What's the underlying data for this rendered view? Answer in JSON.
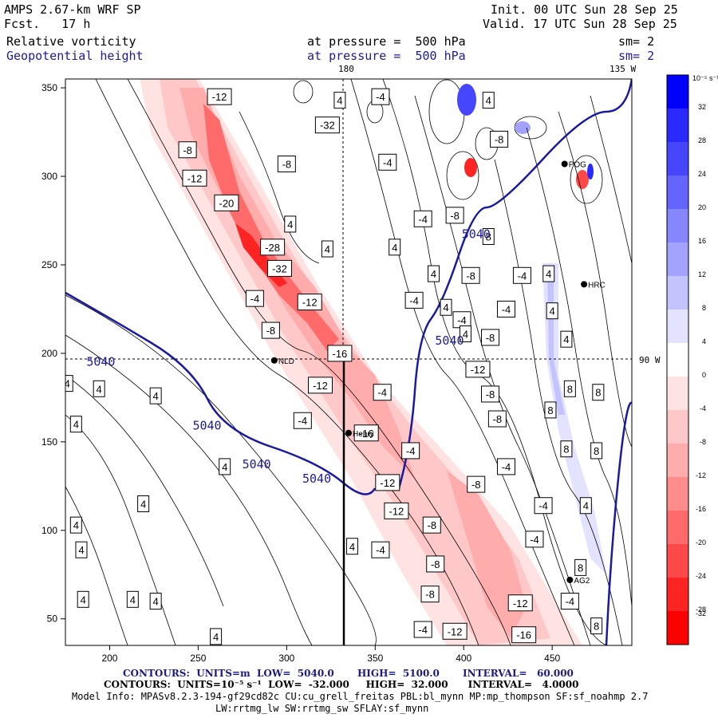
{
  "header": {
    "model": "AMPS 2.67-km WRF SP",
    "fcst": "Fcst.   17 h",
    "init": "Init. 00 UTC Sun 28 Sep 25",
    "valid": "Valid. 17 UTC Sun 28 Sep 25",
    "field1": "Relative vorticity",
    "field2": "Geopotential height",
    "level1": "at pressure =  500 hPa",
    "level2": "at pressure =  500 hPa",
    "sm1": "sm= 2",
    "sm2": "sm= 2",
    "lon180": "180",
    "lon135": "135 W",
    "lat90": "90 W"
  },
  "footer": {
    "line1": "CONTOURS:  UNITS=m  LOW=  5040.0       HIGH=  5100.0       INTERVAL=   60.000",
    "line2": "CONTOURS:  UNITS=10⁻⁵ s⁻¹  LOW=  -32.000     HIGH=  32.000      INTERVAL=   4.0000",
    "line3": "Model Info: MPASv8.2.3-194-gf29cd82c CU:cu_grell_freitas PBL:bl_mynn MP:mp_thompson SF:sf_noahmp 2.7",
    "line4": "LW:rrtmg_lw SW:rrtmg_sw SFLAY:sf_mynn"
  },
  "colorbar": {
    "unit": "10⁻⁵ s⁻¹",
    "labels": [
      "32",
      "28",
      "24",
      "20",
      "16",
      "12",
      "8",
      "4",
      "0",
      "-4",
      "-8",
      "-12",
      "-16",
      "-20",
      "-24",
      "-28",
      "-32"
    ],
    "colors": [
      "#0000ff",
      "#2a2aff",
      "#4646ff",
      "#6464ff",
      "#8686ff",
      "#a3a3ff",
      "#c3c3ff",
      "#e3e3ff",
      "#ffffff",
      "#ffe3e3",
      "#ffc8c8",
      "#ffacac",
      "#ff8c8c",
      "#ff6b6b",
      "#ff4848",
      "#ff2424",
      "#ff0000"
    ]
  },
  "chart_data": {
    "type": "contour-map",
    "xlim": [
      175,
      495
    ],
    "ylim": [
      35,
      355
    ],
    "xticks": [
      200,
      250,
      300,
      350,
      400,
      450
    ],
    "yticks": [
      50,
      100,
      150,
      200,
      250,
      300,
      350
    ],
    "height_contours_m": [
      "5040"
    ],
    "height_labels": [
      {
        "text": "5040",
        "x": 195,
        "y": 193
      },
      {
        "text": "5040",
        "x": 255,
        "y": 157
      },
      {
        "text": "5040",
        "x": 283,
        "y": 135
      },
      {
        "text": "5040",
        "x": 317,
        "y": 127
      },
      {
        "text": "5040",
        "x": 392,
        "y": 205
      },
      {
        "text": "5040",
        "x": 407,
        "y": 265
      }
    ],
    "vorticity_labels": [
      {
        "text": "-12",
        "x": 262,
        "y": 345
      },
      {
        "text": "4",
        "x": 330,
        "y": 343
      },
      {
        "text": "-4",
        "x": 353,
        "y": 345
      },
      {
        "text": "-32",
        "x": 323,
        "y": 329
      },
      {
        "text": "4",
        "x": 414,
        "y": 343
      },
      {
        "text": "-8",
        "x": 244,
        "y": 315
      },
      {
        "text": "-8",
        "x": 300,
        "y": 307
      },
      {
        "text": "-4",
        "x": 357,
        "y": 308
      },
      {
        "text": "-8",
        "x": 420,
        "y": 321
      },
      {
        "text": "-12",
        "x": 248,
        "y": 299
      },
      {
        "text": "-20",
        "x": 266,
        "y": 285
      },
      {
        "text": "-4",
        "x": 377,
        "y": 276
      },
      {
        "text": "-8",
        "x": 395,
        "y": 278
      },
      {
        "text": "-28",
        "x": 292,
        "y": 260
      },
      {
        "text": "4",
        "x": 302,
        "y": 273
      },
      {
        "text": "4",
        "x": 323,
        "y": 259
      },
      {
        "text": "4",
        "x": 361,
        "y": 260
      },
      {
        "text": "8",
        "x": 414,
        "y": 266
      },
      {
        "text": "-32",
        "x": 296,
        "y": 248
      },
      {
        "text": "4",
        "x": 383,
        "y": 245
      },
      {
        "text": "-8",
        "x": 404,
        "y": 244
      },
      {
        "text": "-4",
        "x": 433,
        "y": 244
      },
      {
        "text": "4",
        "x": 448,
        "y": 245
      },
      {
        "text": "-4",
        "x": 282,
        "y": 231
      },
      {
        "text": "-12",
        "x": 313,
        "y": 229
      },
      {
        "text": "-4",
        "x": 372,
        "y": 230
      },
      {
        "text": "4",
        "x": 390,
        "y": 226
      },
      {
        "text": "-4",
        "x": 399,
        "y": 219
      },
      {
        "text": "-4",
        "x": 424,
        "y": 225
      },
      {
        "text": "4",
        "x": 450,
        "y": 224
      },
      {
        "text": "-8",
        "x": 291,
        "y": 213
      },
      {
        "text": "4",
        "x": 401,
        "y": 211
      },
      {
        "text": "-8",
        "x": 415,
        "y": 209
      },
      {
        "text": "4",
        "x": 458,
        "y": 208
      },
      {
        "text": "-16",
        "x": 330,
        "y": 200
      },
      {
        "text": "4",
        "x": 176,
        "y": 183
      },
      {
        "text": "4",
        "x": 194,
        "y": 180
      },
      {
        "text": "-12",
        "x": 319,
        "y": 182
      },
      {
        "text": "-12",
        "x": 408,
        "y": 191
      },
      {
        "text": "-8",
        "x": 415,
        "y": 177
      },
      {
        "text": "8",
        "x": 460,
        "y": 180
      },
      {
        "text": "4",
        "x": 226,
        "y": 176
      },
      {
        "text": "-4",
        "x": 354,
        "y": 178
      },
      {
        "text": "8",
        "x": 476,
        "y": 178
      },
      {
        "text": "4",
        "x": 181,
        "y": 160
      },
      {
        "text": "-4",
        "x": 309,
        "y": 162
      },
      {
        "text": "-8",
        "x": 419,
        "y": 163
      },
      {
        "text": "8",
        "x": 449,
        "y": 168
      },
      {
        "text": "-16",
        "x": 345,
        "y": 155
      },
      {
        "text": "8",
        "x": 458,
        "y": 146
      },
      {
        "text": "4",
        "x": 265,
        "y": 136
      },
      {
        "text": "-4",
        "x": 370,
        "y": 145
      },
      {
        "text": "-4",
        "x": 424,
        "y": 136
      },
      {
        "text": "8",
        "x": 475,
        "y": 145
      },
      {
        "text": "-12",
        "x": 357,
        "y": 127
      },
      {
        "text": "-8",
        "x": 407,
        "y": 126
      },
      {
        "text": "-4",
        "x": 445,
        "y": 114
      },
      {
        "text": "4",
        "x": 469,
        "y": 114
      },
      {
        "text": "4",
        "x": 219,
        "y": 115
      },
      {
        "text": "-12",
        "x": 362,
        "y": 111
      },
      {
        "text": "-8",
        "x": 382,
        "y": 103
      },
      {
        "text": "4",
        "x": 181,
        "y": 103
      },
      {
        "text": "-4",
        "x": 440,
        "y": 95
      },
      {
        "text": "-4",
        "x": 353,
        "y": 89
      },
      {
        "text": "4",
        "x": 337,
        "y": 91
      },
      {
        "text": "4",
        "x": 184,
        "y": 89
      },
      {
        "text": "-8",
        "x": 384,
        "y": 81
      },
      {
        "text": "8",
        "x": 466,
        "y": 79
      },
      {
        "text": "-8",
        "x": 381,
        "y": 64
      },
      {
        "text": "-12",
        "x": 432,
        "y": 59
      },
      {
        "text": "-4",
        "x": 460,
        "y": 60
      },
      {
        "text": "4",
        "x": 185,
        "y": 61
      },
      {
        "text": "4",
        "x": 213,
        "y": 61
      },
      {
        "text": "4",
        "x": 226,
        "y": 60
      },
      {
        "text": "-4",
        "x": 377,
        "y": 44
      },
      {
        "text": "-12",
        "x": 395,
        "y": 43
      },
      {
        "text": "8",
        "x": 475,
        "y": 46
      },
      {
        "text": "-16",
        "x": 434,
        "y": 41
      },
      {
        "text": "4",
        "x": 260,
        "y": 40
      }
    ],
    "stations": [
      {
        "text": "NLD",
        "x": 293,
        "y": 196
      },
      {
        "text": "Henry",
        "x": 335,
        "y": 155
      },
      {
        "text": "HRC",
        "x": 468,
        "y": 239
      },
      {
        "text": "POG",
        "x": 457,
        "y": 307
      },
      {
        "text": "AG2",
        "x": 460,
        "y": 72
      }
    ]
  }
}
